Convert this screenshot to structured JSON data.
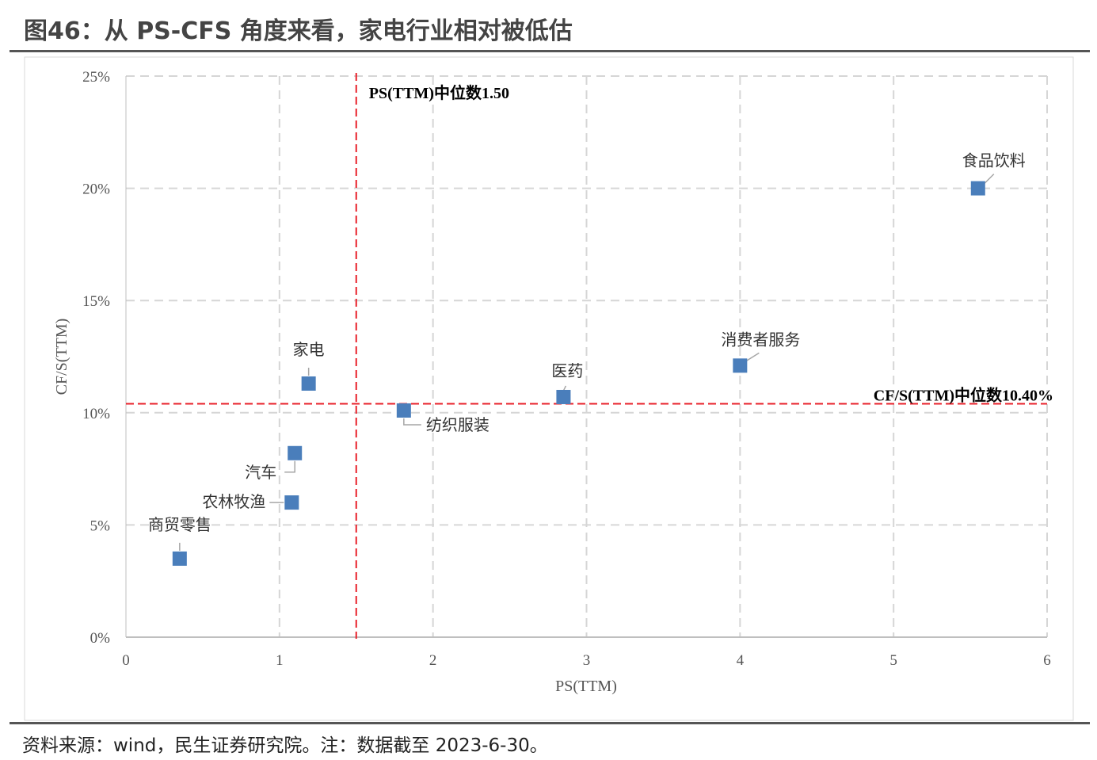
{
  "header": {
    "title": "图46：从 PS-CFS 角度来看，家电行业相对被低估"
  },
  "footer": {
    "source": "资料来源：wind，民生证券研究院。注：数据截至 2023-6-30。"
  },
  "chart_data": {
    "type": "scatter",
    "title": "图46：从 PS-CFS 角度来看，家电行业相对被低估",
    "xlabel": "PS(TTM)",
    "ylabel": "CF/S(TTM)",
    "xlim": [
      0,
      6
    ],
    "ylim": [
      0,
      25
    ],
    "x_ticks": [
      "0",
      "1",
      "2",
      "3",
      "4",
      "5",
      "6"
    ],
    "y_ticks": [
      "0%",
      "5%",
      "10%",
      "15%",
      "20%",
      "25%"
    ],
    "grid": true,
    "colors": {
      "marker": "#4a7ebb",
      "median_line": "#e8202a",
      "grid": "#d6d6d6"
    },
    "points": [
      {
        "label": "商贸零售",
        "x": 0.35,
        "y": 3.5
      },
      {
        "label": "农林牧渔",
        "x": 1.08,
        "y": 6.0
      },
      {
        "label": "汽车",
        "x": 1.1,
        "y": 8.2
      },
      {
        "label": "家电",
        "x": 1.19,
        "y": 11.3
      },
      {
        "label": "纺织服装",
        "x": 1.81,
        "y": 10.1
      },
      {
        "label": "医药",
        "x": 2.85,
        "y": 10.7
      },
      {
        "label": "消费者服务",
        "x": 4.0,
        "y": 12.1
      },
      {
        "label": "食品饮料",
        "x": 5.55,
        "y": 20.0
      }
    ],
    "median_lines": [
      {
        "orientation": "vertical",
        "value": 1.5,
        "label": "PS(TTM)中位数1.50"
      },
      {
        "orientation": "horizontal",
        "value": 10.4,
        "label": "CF/S(TTM)中位数10.40%"
      }
    ]
  }
}
